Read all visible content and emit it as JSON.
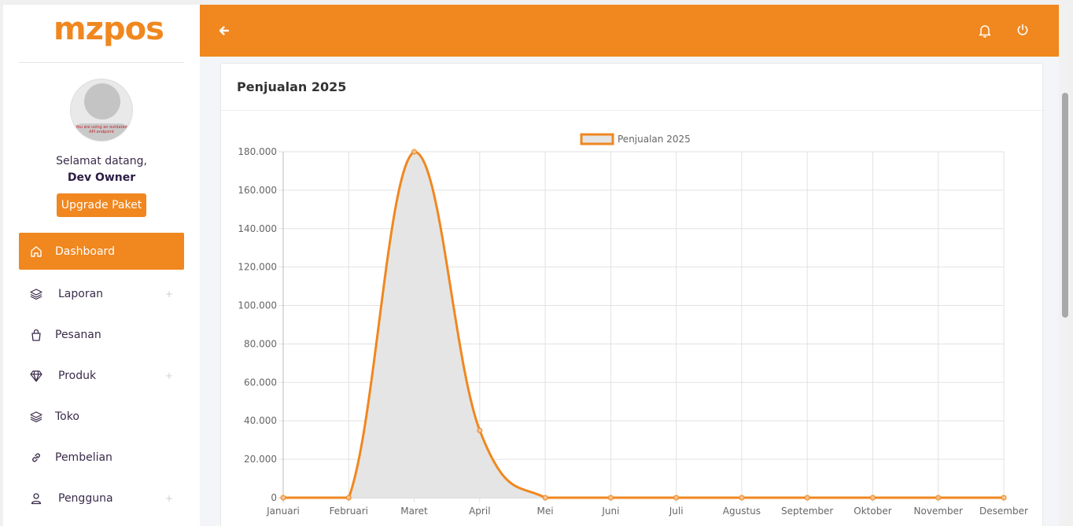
{
  "brand": {
    "logo": "mzpos",
    "accent": "#f0871f"
  },
  "user": {
    "avatar_notice": "You are using an outdated API endpoint",
    "welcome": "Selamat datang,",
    "name": "Dev Owner",
    "upgrade_label": "Upgrade Paket"
  },
  "sidebar": {
    "items": [
      {
        "label": "Dashboard",
        "icon": "home-icon",
        "active": true,
        "expandable": false
      },
      {
        "label": "Laporan",
        "icon": "layers-icon",
        "active": false,
        "expandable": true
      },
      {
        "label": "Pesanan",
        "icon": "shopping-bag-icon",
        "active": false,
        "expandable": false
      },
      {
        "label": "Produk",
        "icon": "diamond-icon",
        "active": false,
        "expandable": true
      },
      {
        "label": "Toko",
        "icon": "layers-icon",
        "active": false,
        "expandable": false
      },
      {
        "label": "Pembelian",
        "icon": "link-icon",
        "active": false,
        "expandable": false
      },
      {
        "label": "Pengguna",
        "icon": "user-icon",
        "active": false,
        "expandable": true
      }
    ],
    "expand_symbol": "+"
  },
  "topbar": {
    "back_icon": "arrow-left-icon",
    "bell_icon": "bell-icon",
    "power_icon": "power-icon"
  },
  "card": {
    "title": "Penjualan 2025"
  },
  "chart_data": {
    "type": "area",
    "title": "",
    "legend_position": "top-center",
    "categories": [
      "Januari",
      "Februari",
      "Maret",
      "April",
      "Mei",
      "Juni",
      "Juli",
      "Agustus",
      "September",
      "Oktober",
      "November",
      "Desember"
    ],
    "series": [
      {
        "name": "Penjualan 2025",
        "values": [
          0,
          0,
          180000,
          35000,
          0,
          0,
          0,
          0,
          0,
          0,
          0,
          0
        ],
        "line_color": "#f0871f",
        "fill_color": "#e4e4e4"
      }
    ],
    "ylim": [
      0,
      180000
    ],
    "yticks": [
      "0",
      "20.000",
      "40.000",
      "60.000",
      "80.000",
      "100.000",
      "120.000",
      "140.000",
      "160.000",
      "180.000"
    ],
    "grid": true,
    "xlabel": "",
    "ylabel": ""
  }
}
